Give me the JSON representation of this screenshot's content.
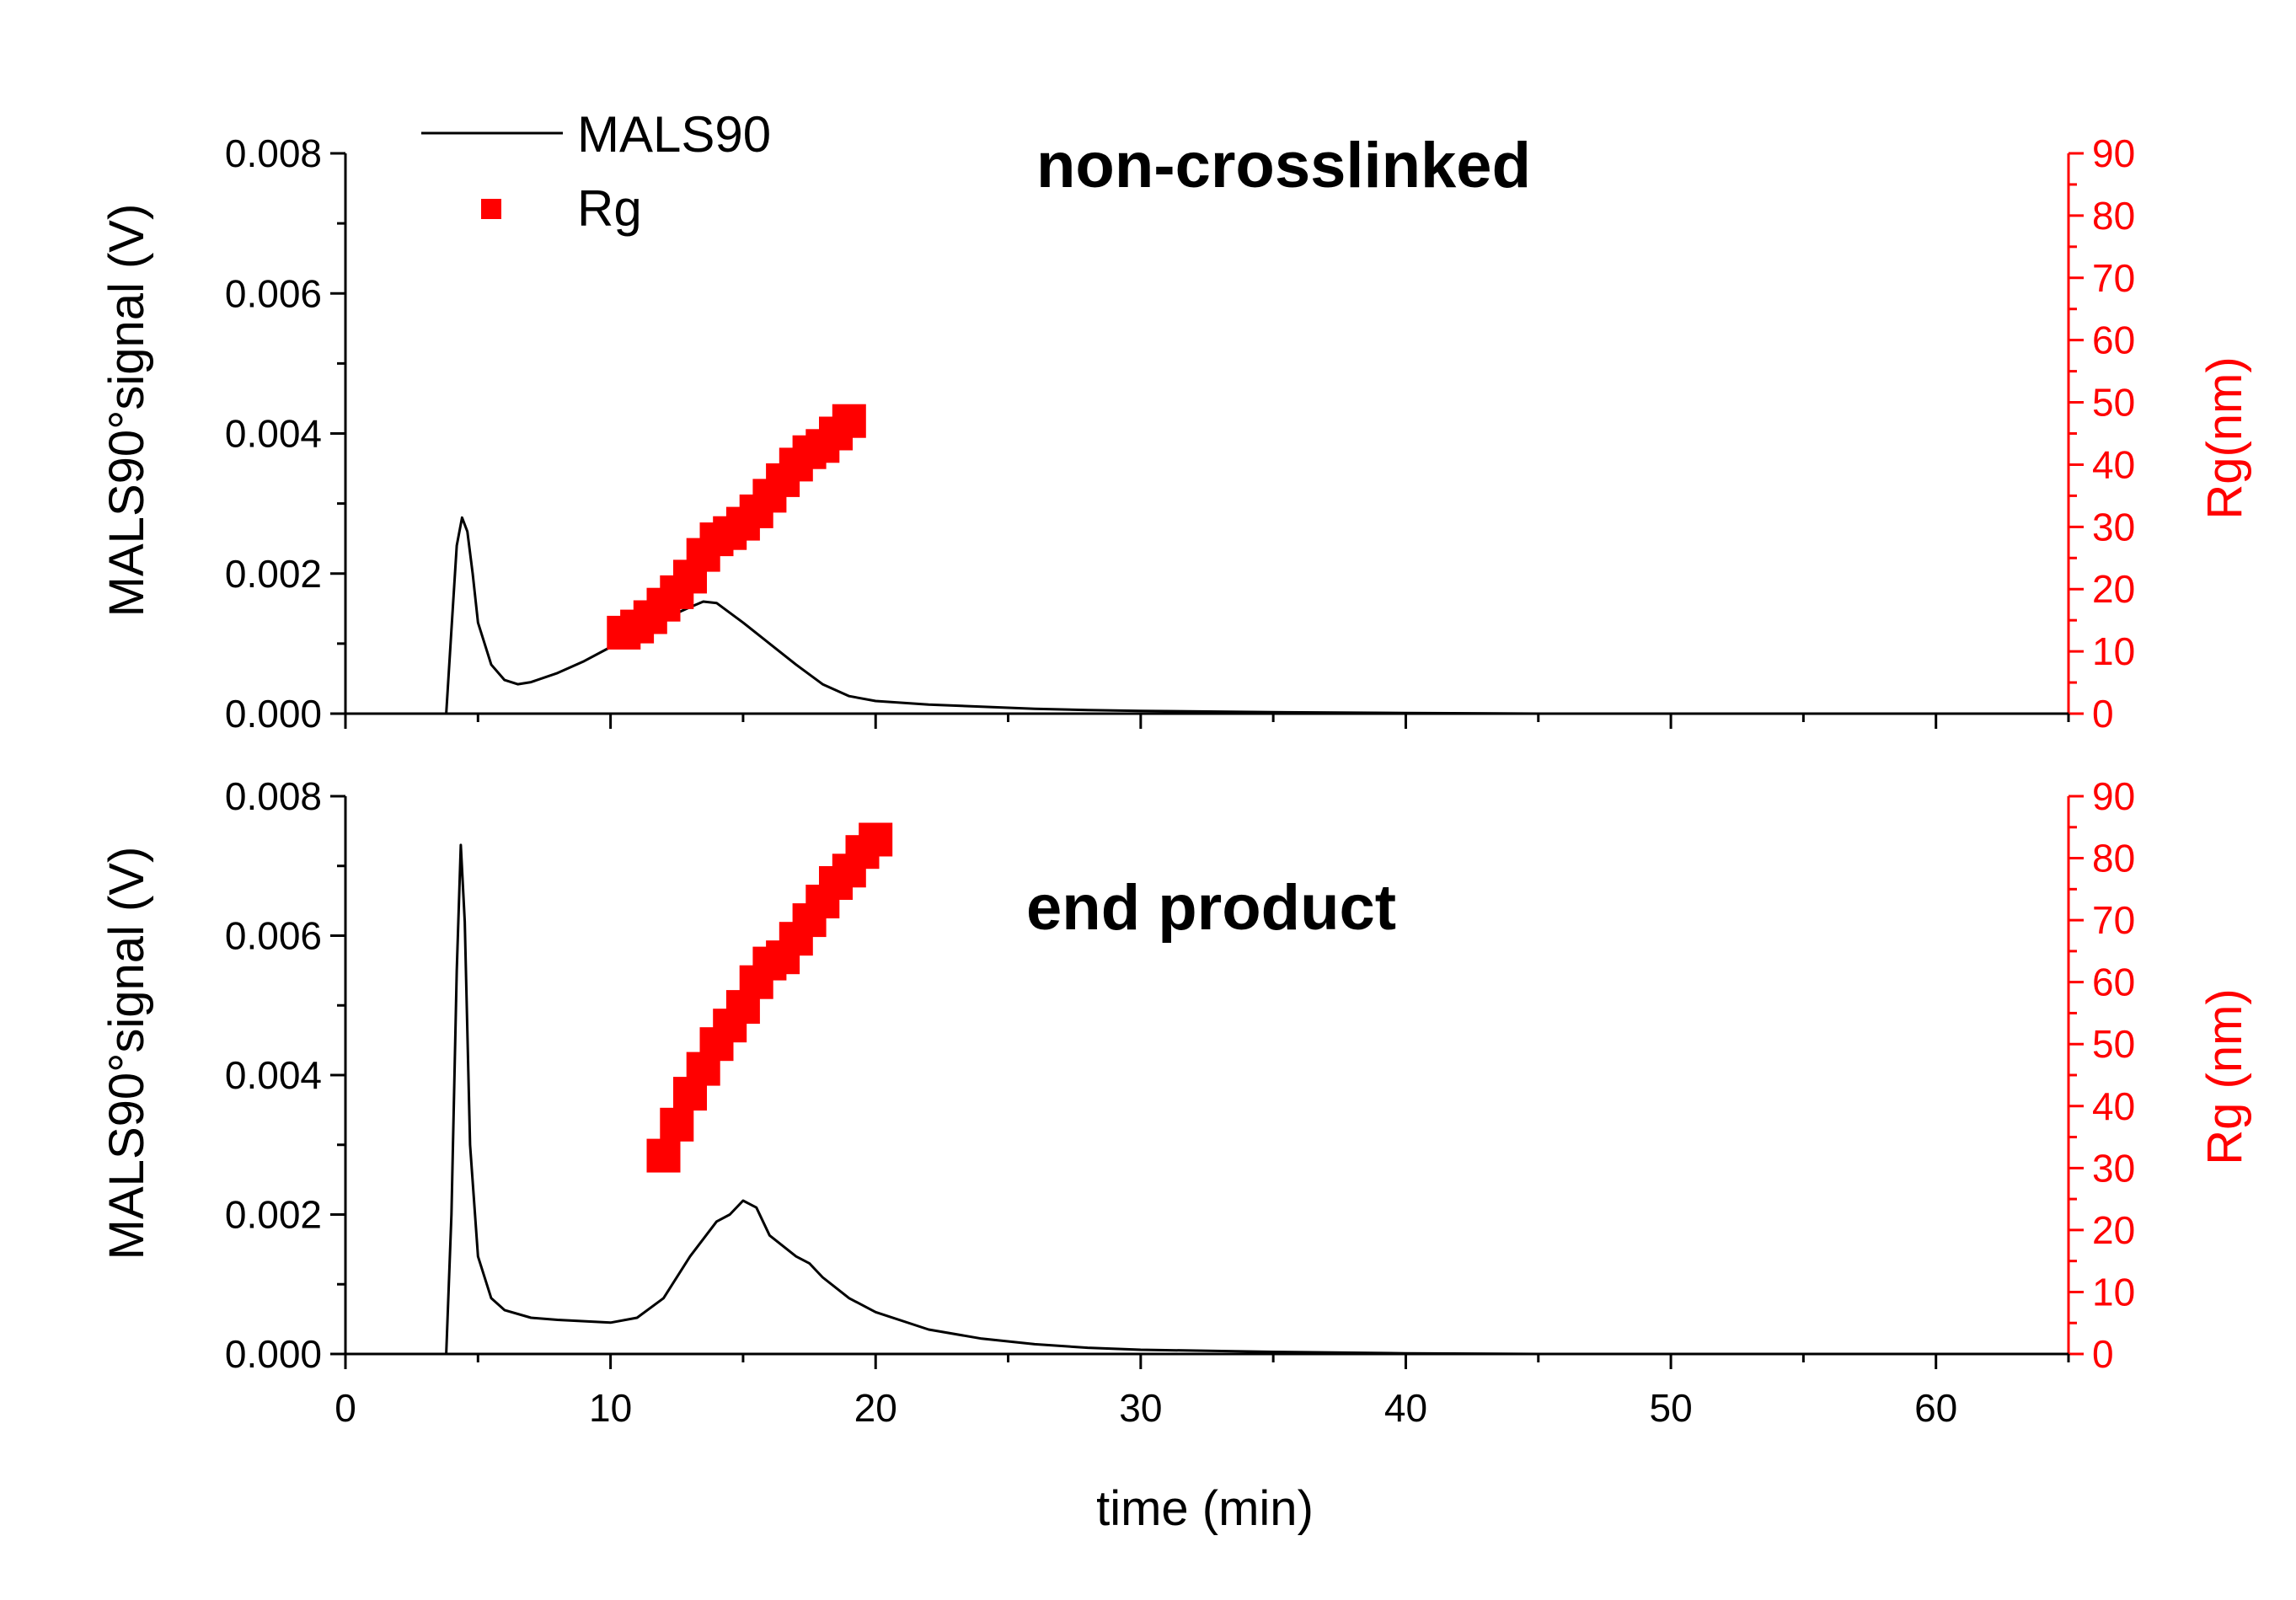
{
  "chart_data": {
    "type": "line",
    "shared_x": {
      "label": "time (min)",
      "range": [
        0,
        65
      ],
      "ticks": [
        0,
        10,
        20,
        30,
        40,
        50,
        60
      ],
      "tick_labels": [
        "0",
        "10",
        "20",
        "30",
        "40",
        "50",
        "60"
      ]
    },
    "legend": {
      "position": "top-left",
      "entries": [
        {
          "name": "MALS90",
          "style": "line",
          "color": "#000000"
        },
        {
          "name": "Rg",
          "style": "square-marker",
          "color": "#ff0000"
        }
      ]
    },
    "panels": [
      {
        "title": "non-crosslinked",
        "left_axis": {
          "label": "MALS90°signal (V)",
          "range": [
            0,
            0.008
          ],
          "ticks": [
            0,
            0.002,
            0.004,
            0.006,
            0.008
          ],
          "tick_labels": [
            "0.000",
            "0.002",
            "0.004",
            "0.006",
            "0.008"
          ]
        },
        "right_axis": {
          "label": "Rg(nm)",
          "color": "#ff0000",
          "range": [
            0,
            90
          ],
          "ticks": [
            0,
            10,
            20,
            30,
            40,
            50,
            60,
            70,
            80,
            90
          ],
          "tick_labels": [
            "0",
            "10",
            "20",
            "30",
            "40",
            "50",
            "60",
            "70",
            "80",
            "90"
          ]
        },
        "series": [
          {
            "name": "MALS90",
            "axis": "left",
            "color": "#000000",
            "x": [
              3.8,
              4.0,
              4.2,
              4.4,
              4.6,
              4.8,
              5.0,
              5.5,
              6.0,
              6.5,
              7.0,
              8.0,
              9.0,
              10.0,
              11.0,
              12.0,
              13.0,
              13.5,
              14.0,
              15.0,
              16.0,
              17.0,
              18.0,
              19.0,
              20.0,
              22.0,
              24.0,
              26.0,
              28.0,
              30.0,
              35.0,
              40.0,
              45.0
            ],
            "y": [
              0.0,
              0.0012,
              0.0024,
              0.0028,
              0.0026,
              0.002,
              0.0013,
              0.0007,
              0.00048,
              0.00042,
              0.00045,
              0.00058,
              0.00075,
              0.00095,
              0.00115,
              0.00135,
              0.00152,
              0.0016,
              0.00158,
              0.0013,
              0.001,
              0.0007,
              0.00042,
              0.00025,
              0.00018,
              0.00013,
              0.0001,
              7e-05,
              5e-05,
              4e-05,
              2e-05,
              1e-05,
              0.0
            ]
          },
          {
            "name": "Rg",
            "axis": "right",
            "color": "#ff0000",
            "x": [
              10.5,
              11.0,
              11.5,
              12.0,
              12.5,
              13.0,
              13.5,
              14.0,
              14.5,
              15.0,
              15.5,
              16.0,
              16.5,
              17.0,
              17.5,
              18.0,
              18.5,
              19.0
            ],
            "y": [
              13,
              14,
              15.5,
              17.5,
              19.5,
              22,
              25.5,
              28,
              29,
              30.5,
              32.5,
              35,
              37.5,
              40,
              42,
              43,
              45,
              47
            ]
          }
        ]
      },
      {
        "title": "end product",
        "left_axis": {
          "label": "MALS90°signal (V)",
          "range": [
            0,
            0.008
          ],
          "ticks": [
            0,
            0.002,
            0.004,
            0.006,
            0.008
          ],
          "tick_labels": [
            "0.000",
            "0.002",
            "0.004",
            "0.006",
            "0.008"
          ]
        },
        "right_axis": {
          "label": "Rg (nm)",
          "color": "#ff0000",
          "range": [
            0,
            90
          ],
          "ticks": [
            0,
            10,
            20,
            30,
            40,
            50,
            60,
            70,
            80,
            90
          ],
          "tick_labels": [
            "0",
            "10",
            "20",
            "30",
            "40",
            "50",
            "60",
            "70",
            "80",
            "90"
          ]
        },
        "series": [
          {
            "name": "MALS90",
            "axis": "left",
            "color": "#000000",
            "x": [
              3.8,
              4.0,
              4.2,
              4.35,
              4.5,
              4.7,
              5.0,
              5.5,
              6.0,
              7.0,
              8.0,
              9.0,
              10.0,
              11.0,
              12.0,
              13.0,
              14.0,
              14.5,
              15.0,
              15.5,
              16.0,
              17.0,
              17.5,
              18.0,
              19.0,
              20.0,
              22.0,
              24.0,
              26.0,
              28.0,
              30.0,
              35.0,
              40.0,
              45.0
            ],
            "y": [
              0.0,
              0.002,
              0.0055,
              0.0073,
              0.0062,
              0.003,
              0.0014,
              0.0008,
              0.00063,
              0.00052,
              0.00049,
              0.00047,
              0.00045,
              0.00052,
              0.0008,
              0.0014,
              0.0019,
              0.002,
              0.0022,
              0.0021,
              0.0017,
              0.0014,
              0.0013,
              0.0011,
              0.0008,
              0.0006,
              0.00035,
              0.00022,
              0.00014,
              9e-05,
              6e-05,
              3e-05,
              1e-05,
              0.0
            ]
          },
          {
            "name": "Rg",
            "axis": "right",
            "color": "#ff0000",
            "x": [
              12.0,
              12.5,
              13.0,
              13.5,
              14.0,
              14.5,
              15.0,
              15.5,
              16.0,
              16.5,
              17.0,
              17.5,
              18.0,
              18.5,
              19.0,
              19.5,
              20.0
            ],
            "y": [
              32,
              37,
              42,
              46,
              50,
              53,
              56,
              60,
              63,
              64,
              67,
              70,
              73,
              76,
              78,
              81,
              83
            ]
          }
        ]
      }
    ]
  }
}
